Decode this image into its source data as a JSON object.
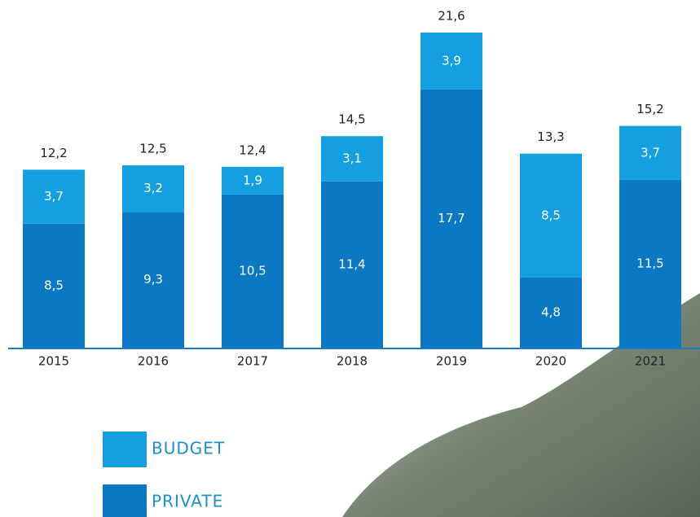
{
  "chart_data": {
    "type": "bar",
    "stacked": true,
    "categories": [
      "2015",
      "2016",
      "2017",
      "2018",
      "2019",
      "2020",
      "2021"
    ],
    "series": [
      {
        "name": "PRIVATE",
        "color": "#0a78c2",
        "values": [
          8.5,
          9.3,
          10.5,
          11.4,
          17.7,
          4.8,
          11.5
        ],
        "value_labels": [
          "8,5",
          "9,3",
          "10,5",
          "11,4",
          "17,7",
          "4,8",
          "11,5"
        ]
      },
      {
        "name": "BUDGET",
        "color": "#14a0e0",
        "values": [
          3.7,
          3.2,
          1.9,
          3.1,
          3.9,
          8.5,
          3.7
        ],
        "value_labels": [
          "3,7",
          "3,2",
          "1,9",
          "3,1",
          "3,9",
          "8,5",
          "3,7"
        ]
      }
    ],
    "totals": [
      12.2,
      12.5,
      12.4,
      14.5,
      21.6,
      13.3,
      15.2
    ],
    "total_labels": [
      "12,2",
      "12,5",
      "12,4",
      "14,5",
      "21,6",
      "13,3",
      "15,2"
    ]
  }
}
